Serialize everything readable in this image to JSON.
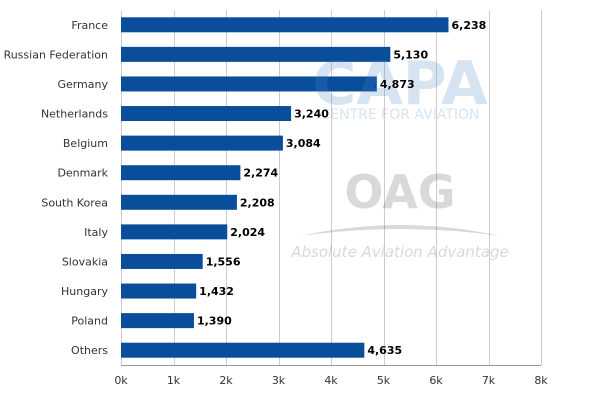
{
  "chart_data": {
    "type": "bar",
    "orientation": "horizontal",
    "categories": [
      "France",
      "Russian Federation",
      "Germany",
      "Netherlands",
      "Belgium",
      "Denmark",
      "South Korea",
      "Italy",
      "Slovakia",
      "Hungary",
      "Poland",
      "Others"
    ],
    "values": [
      6238,
      5130,
      4873,
      3240,
      3084,
      2274,
      2208,
      2024,
      1556,
      1432,
      1390,
      4635
    ],
    "value_labels": [
      "6,238",
      "5,130",
      "4,873",
      "3,240",
      "3,084",
      "2,274",
      "2,208",
      "2,024",
      "1,556",
      "1,432",
      "1,390",
      "4,635"
    ],
    "xlim": [
      0,
      8000
    ],
    "x_ticks": [
      0,
      1000,
      2000,
      3000,
      4000,
      5000,
      6000,
      7000,
      8000
    ],
    "x_tick_labels": [
      "0k",
      "1k",
      "2k",
      "3k",
      "4k",
      "5k",
      "6k",
      "7k",
      "8k"
    ],
    "title": "",
    "xlabel": "",
    "ylabel": "",
    "grid": "vertical",
    "legend": "none",
    "bar_color": "#0a4e9b",
    "grid_color": "#cccccc"
  },
  "watermarks": {
    "capa_logo": "CAPA",
    "capa_subtitle": "CENTRE FOR AVIATION",
    "oag_logo": "OAG",
    "oag_tagline": "Absolute Aviation Advantage"
  }
}
